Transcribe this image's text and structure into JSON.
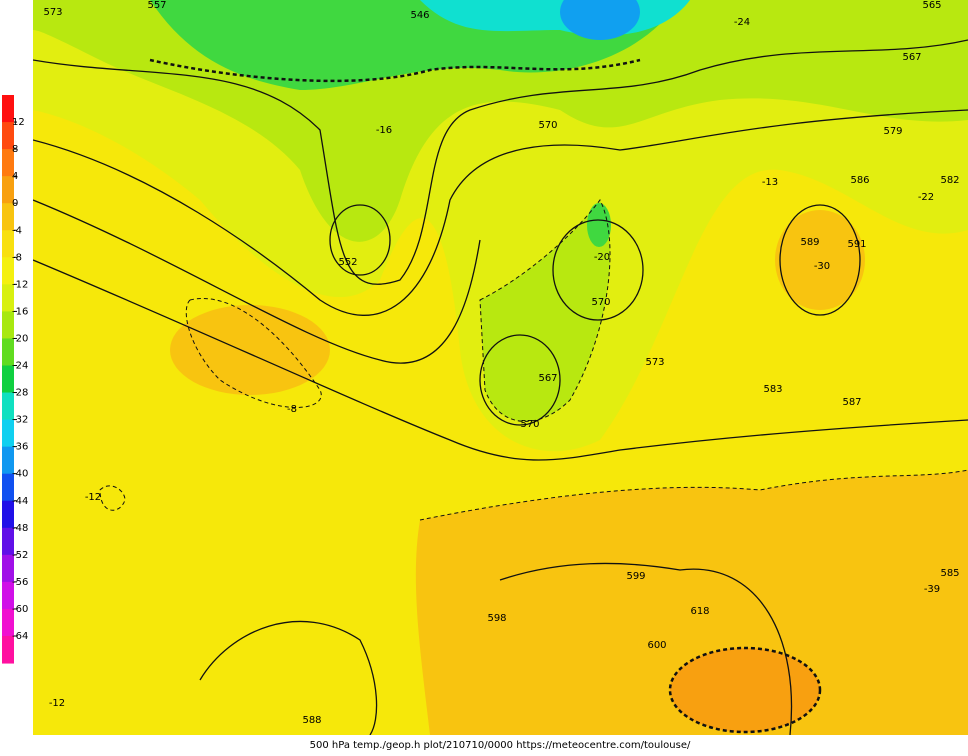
{
  "legend": {
    "ticks": [
      12,
      8,
      4,
      0,
      -4,
      -8,
      -12,
      -16,
      -20,
      -24,
      -28,
      -32,
      -36,
      -40,
      -44,
      -48,
      -52,
      -56,
      -60,
      -64
    ],
    "colors": [
      "#ff1010",
      "#ff4a10",
      "#ff7a10",
      "#f8a010",
      "#f8c410",
      "#f8e010",
      "#f4f010",
      "#d8f010",
      "#a8e810",
      "#60dc20",
      "#10d040",
      "#10e0c0",
      "#10d0f0",
      "#1098f0",
      "#1050f0",
      "#2010e8",
      "#6010e8",
      "#a010e8",
      "#d010e8",
      "#f010d0",
      "#ff10a0"
    ]
  },
  "map": {
    "contour_labels": [
      "552",
      "570",
      "573",
      "557",
      "565",
      "546",
      "567",
      "579",
      "586",
      "589",
      "591",
      "582",
      "570",
      "567",
      "570",
      "573",
      "583",
      "587",
      "585",
      "599",
      "618",
      "600",
      "588",
      "598",
      "-12",
      "-8",
      "-12",
      "-20",
      "-16",
      "-30",
      "-39",
      "-24",
      "-13",
      "-22"
    ]
  },
  "footer": "500 hPa temp./geop.h plot/210710/0000 https://meteocentre.com/toulouse/"
}
